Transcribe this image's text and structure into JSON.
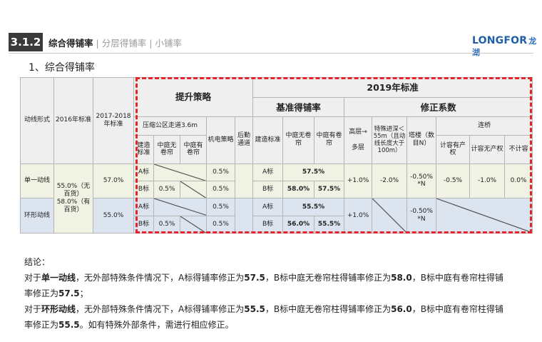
{
  "header": {
    "number": "3.1.2",
    "title": "综合得铺率",
    "sep1": "|",
    "sub1": "分层得铺率",
    "sep2": "|",
    "sub2": "小铺率",
    "logo": "LONGFOR",
    "logo_cn": "龙湖"
  },
  "section_title": "1、综合得铺率",
  "table": {
    "col_type": "动线形式",
    "col_2016": "2016年标准",
    "col_2017": "2017-2018年标准",
    "h_upgrade": "提升策略",
    "h_2019": "2019年标准",
    "h_base": "基准得铺率",
    "h_fix": "修正系数",
    "h_compress": "压缩公区走道3.6m",
    "h_mech": "机电策略",
    "h_backdoor": "后勤通道",
    "h_build_std": "建造标准",
    "h_mid_no": "中庭无卷帘",
    "h_mid_yes": "中庭有卷帘",
    "h_build_std2": "建造标准",
    "h_mid_no2": "中庭无卷帘",
    "h_mid_yes2": "中庭有卷帘",
    "h_high": "高层→",
    "h_multi": "多层",
    "h_deep": "特殊进深＜55m（且动线长度大于100m）",
    "h_tower": "塔楼（数目N）",
    "h_bridge": "连桥",
    "h_b1": "计容有产权",
    "h_b2": "计容无产权",
    "h_b3": "不计容",
    "row1": {
      "type": "单一动线",
      "s2016": "55.0%（无百货）58.0%（有百货）",
      "s2017": "57.0%",
      "a_std": "A标",
      "b_std": "B标",
      "b_mid_no": "0.5%",
      "a_mech": "0.5%",
      "b_mech": "0.5%",
      "a_std2": "A标",
      "a_base": "57.5%",
      "b_std2": "B标",
      "b_base_no": "58.0%",
      "b_base_yes": "57.5%",
      "high": "+1.0%",
      "deep": "-2.0%",
      "tower": "-0.50% *N",
      "b1": "-0.5%",
      "b2": "-1.0%",
      "b3": "0.0%"
    },
    "row2": {
      "type": "环形动线",
      "s2017": "55.0%",
      "a_std": "A标",
      "b_std": "B标",
      "b_mid_no": "0.5%",
      "a_mech": "0.5%",
      "b_mech": "0.5%",
      "a_std2": "A标",
      "a_base": "55.5%",
      "b_std2": "B标",
      "b_base_no": "56.0%",
      "b_base_yes": "55.5%",
      "high": "+1.0%",
      "tower": "-0.50% *N"
    }
  },
  "conclusion": {
    "label": "结论：",
    "l1_pre": "对于",
    "l1_bold": "单一动线",
    "l1_a": "，无外部特殊条件情况下，A标得铺率修正为",
    "l1_v1": "57.5",
    "l1_b": "，B标中庭无卷帘柱得铺率修正为",
    "l1_v2": "58.0",
    "l1_c": "，B标中庭有卷帘柱得铺",
    "l2_a": "率修正为",
    "l2_v": "57.5",
    "l2_b": "；",
    "l3_pre": "对于",
    "l3_bold": "环形动线",
    "l3_a": "，无外部特殊条件情况下，A标得铺率修正为",
    "l3_v1": "55.5",
    "l3_b": "，B标中庭无卷帘柱得铺率修正为",
    "l3_v2": "56.0",
    "l3_c": "，B标中庭有卷帘柱得铺",
    "l4_a": "率修正为",
    "l4_v": "55.5",
    "l4_b": "。如有特殊外部条件，需进行相应修正。"
  }
}
